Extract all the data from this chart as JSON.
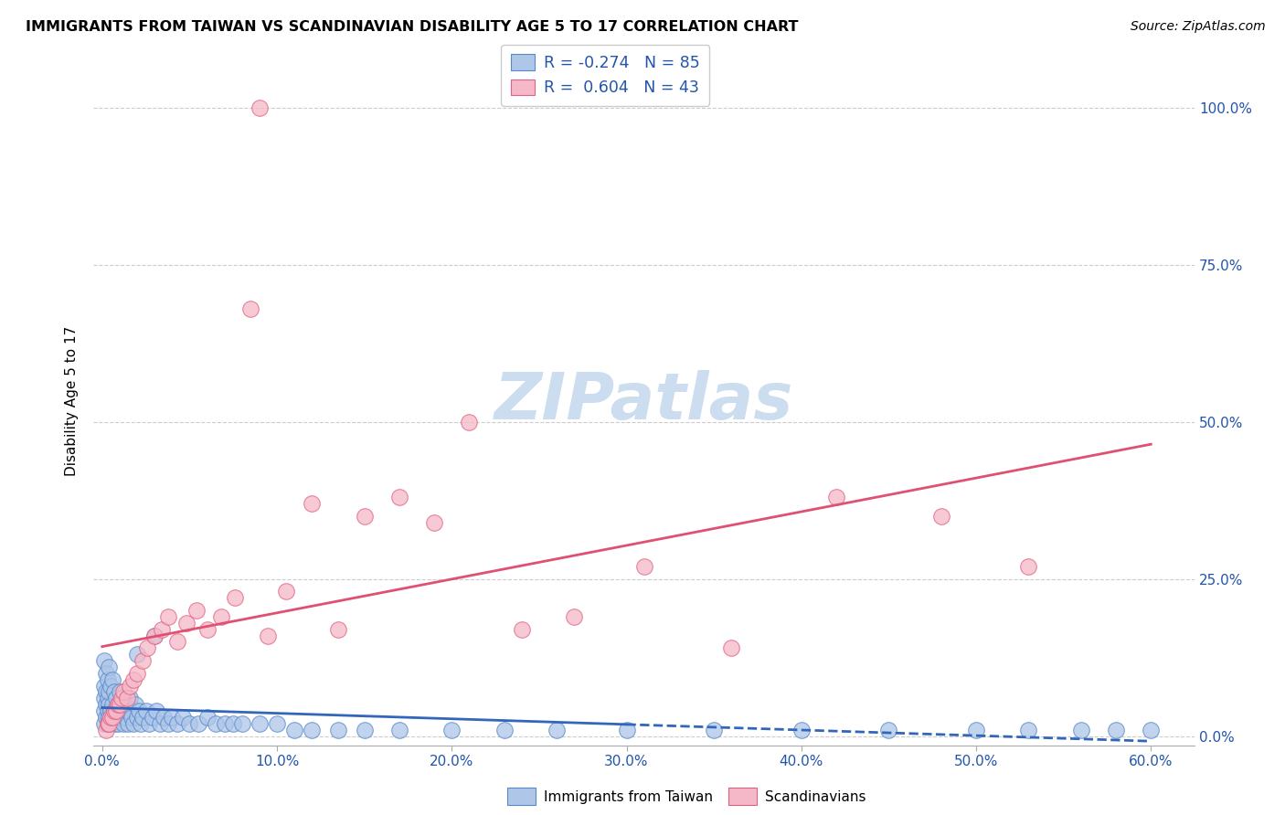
{
  "title": "IMMIGRANTS FROM TAIWAN VS SCANDINAVIAN DISABILITY AGE 5 TO 17 CORRELATION CHART",
  "source": "Source: ZipAtlas.com",
  "xlabel_taiwan": "Immigrants from Taiwan",
  "xlabel_scandinavian": "Scandinavians",
  "ylabel": "Disability Age 5 to 17",
  "taiwan_R": -0.274,
  "taiwan_N": 85,
  "scand_R": 0.604,
  "scand_N": 43,
  "xmin": 0.0,
  "xmax": 0.6,
  "ymin": 0.0,
  "ymax": 1.05,
  "taiwan_color": "#aec6e8",
  "taiwan_edge_color": "#5588cc",
  "taiwan_line_color": "#3366bb",
  "scand_color": "#f5b8c8",
  "scand_edge_color": "#e06080",
  "scand_line_color": "#e05070",
  "watermark_color": "#ccddf0",
  "x_ticks": [
    0.0,
    0.1,
    0.2,
    0.3,
    0.4,
    0.5,
    0.6
  ],
  "x_tick_labels": [
    "0.0%",
    "10.0%",
    "20.0%",
    "30.0%",
    "40.0%",
    "50.0%",
    "60.0%"
  ],
  "y_ticks": [
    0.0,
    0.25,
    0.5,
    0.75,
    1.0
  ],
  "y_tick_labels": [
    "0.0%",
    "25.0%",
    "50.0%",
    "75.0%",
    "100.0%"
  ],
  "taiwan_x": [
    0.001,
    0.001,
    0.001,
    0.001,
    0.001,
    0.002,
    0.002,
    0.002,
    0.002,
    0.003,
    0.003,
    0.003,
    0.003,
    0.004,
    0.004,
    0.004,
    0.004,
    0.005,
    0.005,
    0.005,
    0.006,
    0.006,
    0.006,
    0.007,
    0.007,
    0.007,
    0.008,
    0.008,
    0.009,
    0.009,
    0.01,
    0.01,
    0.011,
    0.012,
    0.012,
    0.013,
    0.014,
    0.015,
    0.015,
    0.016,
    0.017,
    0.018,
    0.019,
    0.02,
    0.021,
    0.022,
    0.023,
    0.025,
    0.027,
    0.029,
    0.031,
    0.033,
    0.035,
    0.038,
    0.04,
    0.043,
    0.046,
    0.05,
    0.055,
    0.06,
    0.065,
    0.07,
    0.075,
    0.08,
    0.09,
    0.1,
    0.11,
    0.12,
    0.135,
    0.15,
    0.17,
    0.2,
    0.23,
    0.26,
    0.3,
    0.35,
    0.4,
    0.45,
    0.5,
    0.53,
    0.56,
    0.58,
    0.6,
    0.02,
    0.03
  ],
  "taiwan_y": [
    0.02,
    0.04,
    0.06,
    0.08,
    0.12,
    0.03,
    0.05,
    0.07,
    0.1,
    0.02,
    0.04,
    0.06,
    0.09,
    0.03,
    0.05,
    0.07,
    0.11,
    0.02,
    0.04,
    0.08,
    0.03,
    0.05,
    0.09,
    0.02,
    0.04,
    0.07,
    0.03,
    0.06,
    0.02,
    0.05,
    0.03,
    0.07,
    0.04,
    0.02,
    0.06,
    0.03,
    0.05,
    0.02,
    0.04,
    0.06,
    0.03,
    0.02,
    0.05,
    0.03,
    0.04,
    0.02,
    0.03,
    0.04,
    0.02,
    0.03,
    0.04,
    0.02,
    0.03,
    0.02,
    0.03,
    0.02,
    0.03,
    0.02,
    0.02,
    0.03,
    0.02,
    0.02,
    0.02,
    0.02,
    0.02,
    0.02,
    0.01,
    0.01,
    0.01,
    0.01,
    0.01,
    0.01,
    0.01,
    0.01,
    0.01,
    0.01,
    0.01,
    0.01,
    0.01,
    0.01,
    0.01,
    0.01,
    0.01,
    0.13,
    0.16
  ],
  "scand_x": [
    0.002,
    0.003,
    0.004,
    0.005,
    0.006,
    0.007,
    0.008,
    0.009,
    0.01,
    0.011,
    0.012,
    0.014,
    0.016,
    0.018,
    0.02,
    0.023,
    0.026,
    0.03,
    0.034,
    0.038,
    0.043,
    0.048,
    0.054,
    0.06,
    0.068,
    0.076,
    0.085,
    0.095,
    0.105,
    0.09,
    0.12,
    0.135,
    0.15,
    0.17,
    0.19,
    0.21,
    0.24,
    0.27,
    0.31,
    0.36,
    0.42,
    0.48,
    0.53
  ],
  "scand_y": [
    0.01,
    0.02,
    0.02,
    0.03,
    0.03,
    0.04,
    0.04,
    0.05,
    0.05,
    0.06,
    0.07,
    0.06,
    0.08,
    0.09,
    0.1,
    0.12,
    0.14,
    0.16,
    0.17,
    0.19,
    0.15,
    0.18,
    0.2,
    0.17,
    0.19,
    0.22,
    0.68,
    0.16,
    0.23,
    1.0,
    0.37,
    0.17,
    0.35,
    0.38,
    0.34,
    0.5,
    0.17,
    0.19,
    0.27,
    0.14,
    0.38,
    0.35,
    0.27
  ]
}
